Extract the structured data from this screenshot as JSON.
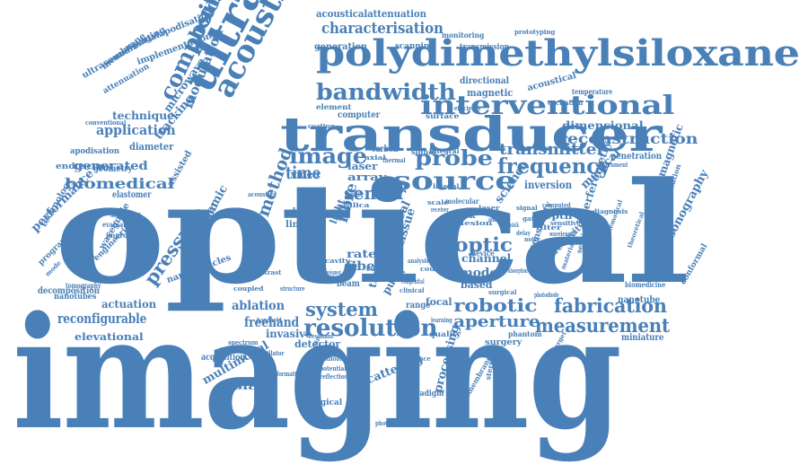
{
  "colors": {
    "ink": "#4a80b8",
    "background": "#ffffff"
  },
  "words": [
    "imaging",
    "optical",
    "polydimethylsiloxane",
    "transducer",
    "ultrasonic",
    "acoustic",
    "interventional",
    "bandwidth",
    "source",
    "image",
    "probe",
    "frequency",
    "resolution",
    "system",
    "fabrication",
    "measurement",
    "aperture",
    "optic",
    "robotic",
    "transmitter",
    "reconstruction",
    "characterisation",
    "composite",
    "photoacoustic",
    "pressure",
    "modulation",
    "sensor",
    "method",
    "time",
    "fibre",
    "biomedical",
    "generated",
    "application",
    "technique",
    "performance",
    "reconfigurable",
    "actuation",
    "ablation",
    "freehand",
    "invasive",
    "multimodal",
    "scattering",
    "detector",
    "ultrasonography",
    "electromagnetic",
    "interferometry",
    "medical",
    "science",
    "nanotube",
    "miniature",
    "dimensional",
    "acousticalattenuation",
    "generation",
    "scanning",
    "transmission",
    "monitoring",
    "prototyping",
    "directional",
    "magnetic",
    "acoustical",
    "element",
    "spatialapodisation",
    "implementation",
    "ultrasoundimaging",
    "membrane",
    "attenuation",
    "microwave",
    "tracking",
    "diameter",
    "apodisation",
    "endoscopy",
    "geometry",
    "elastomer",
    "assisted",
    "equation",
    "dynamic",
    "fiber",
    "rate",
    "array",
    "laser",
    "carbon",
    "signal",
    "integral",
    "computer",
    "surface",
    "coating",
    "video",
    "inversion",
    "penetration",
    "channel",
    "model",
    "based",
    "tissue",
    "real",
    "pdms",
    "sensitivity",
    "processing",
    "surgery",
    "phantom",
    "quality",
    "tumour",
    "pulse",
    "range",
    "beam",
    "chirp",
    "linear",
    "light",
    "decomposition",
    "tomography",
    "nanotubes",
    "nanoparticles",
    "elevational",
    "acquisition",
    "biological",
    "paradigm",
    "radiology",
    "directivity",
    "biomembranes",
    "technology",
    "waveguide",
    "engineering",
    "programming",
    "evaluation",
    "improved",
    "significant",
    "conventional",
    "temperature",
    "excitation",
    "biomedicine",
    "regularization",
    "conformal",
    "efficiency",
    "surgical",
    "device",
    "guidance",
    "potential",
    "reflection",
    "clinical",
    "sensing",
    "oscillator",
    "formation",
    "spectrum",
    "handheld",
    "resonant",
    "domain",
    "stereo",
    "photothermal",
    "congenital",
    "lesion",
    "absorption",
    "signal",
    "filter",
    "photodiode",
    "sensitive",
    "wavelength",
    "crosstalk",
    "delay",
    "gain",
    "noise",
    "focal",
    "depth",
    "learning",
    "laser",
    "silica",
    "coupled",
    "contrast",
    "acoustics",
    "instrument",
    "diagnosis",
    "computed",
    "molecular",
    "addition",
    "receiver",
    "scale",
    "work",
    "count",
    "result",
    "visible",
    "broad",
    "field",
    "lateral",
    "axial",
    "mode",
    "flexible",
    "target",
    "mathematical",
    "theoretical",
    "composition",
    "structure",
    "development",
    "analysis",
    "thermal",
    "gold",
    "cavity",
    "current",
    "material",
    "narrowband",
    "electronic",
    "volume",
    "distance"
  ]
}
